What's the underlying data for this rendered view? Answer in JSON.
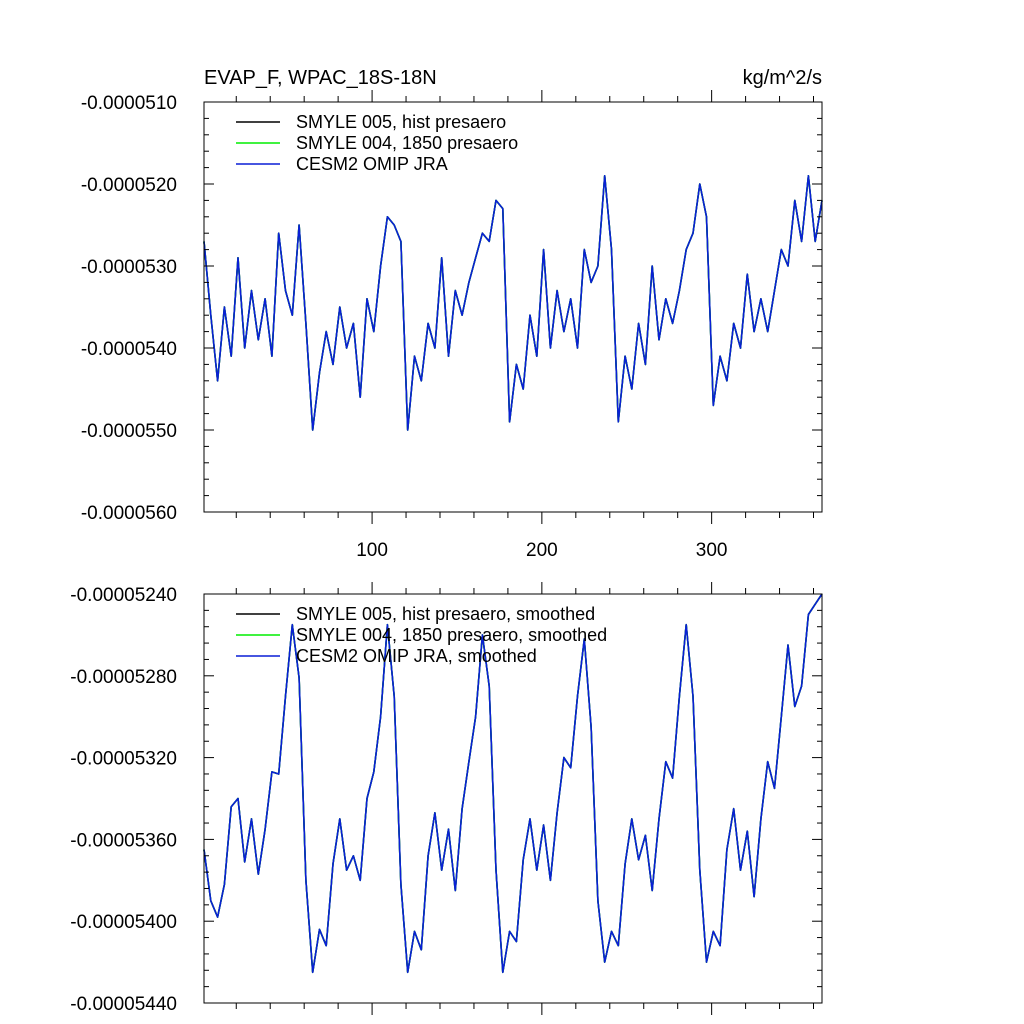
{
  "colors": {
    "black": "#000000",
    "green": "#00ee00",
    "blue": "#0a1fd6"
  },
  "chart_data": [
    {
      "type": "line",
      "title": "EVAP_F, WPAC_18S-18N",
      "units": "kg/m^2/s",
      "xlabel": "",
      "ylabel": "",
      "xlim": [
        1,
        365
      ],
      "ylim": [
        -5.6e-05,
        -5.1e-05
      ],
      "xticks": [
        100,
        200,
        300
      ],
      "xtick_labels": [
        "100",
        "200",
        "300"
      ],
      "yticks": [
        -5.1e-05,
        -5.2e-05,
        -5.3e-05,
        -5.4e-05,
        -5.5e-05,
        -5.6e-05
      ],
      "ytick_labels": [
        "-0.0000510",
        "-0.0000520",
        "-0.0000530",
        "-0.0000540",
        "-0.0000550",
        "-0.0000560"
      ],
      "legend_position": "top-left",
      "grid": false,
      "x": [
        1,
        5,
        9,
        13,
        17,
        21,
        25,
        29,
        33,
        37,
        41,
        45,
        49,
        53,
        57,
        61,
        65,
        69,
        73,
        77,
        81,
        85,
        89,
        93,
        97,
        101,
        105,
        109,
        113,
        117,
        121,
        125,
        129,
        133,
        137,
        141,
        145,
        149,
        153,
        157,
        161,
        165,
        169,
        173,
        177,
        181,
        185,
        189,
        193,
        197,
        201,
        205,
        209,
        213,
        217,
        221,
        225,
        229,
        233,
        237,
        241,
        245,
        249,
        253,
        257,
        261,
        265,
        269,
        273,
        277,
        281,
        285,
        289,
        293,
        297,
        301,
        305,
        309,
        313,
        317,
        321,
        325,
        329,
        333,
        337,
        341,
        345,
        349,
        353,
        357,
        361,
        365
      ],
      "series": [
        {
          "name": "SMYLE 005, hist presaero",
          "color": "black",
          "values": [
            -5.27e-05,
            -5.36e-05,
            -5.44e-05,
            -5.35e-05,
            -5.41e-05,
            -5.29e-05,
            -5.4e-05,
            -5.33e-05,
            -5.39e-05,
            -5.34e-05,
            -5.41e-05,
            -5.26e-05,
            -5.33e-05,
            -5.36e-05,
            -5.25e-05,
            -5.37e-05,
            -5.5e-05,
            -5.43e-05,
            -5.38e-05,
            -5.42e-05,
            -5.35e-05,
            -5.4e-05,
            -5.37e-05,
            -5.46e-05,
            -5.34e-05,
            -5.38e-05,
            -5.3e-05,
            -5.24e-05,
            -5.25e-05,
            -5.27e-05,
            -5.5e-05,
            -5.41e-05,
            -5.44e-05,
            -5.37e-05,
            -5.4e-05,
            -5.29e-05,
            -5.41e-05,
            -5.33e-05,
            -5.36e-05,
            -5.32e-05,
            -5.29e-05,
            -5.26e-05,
            -5.27e-05,
            -5.22e-05,
            -5.23e-05,
            -5.49e-05,
            -5.42e-05,
            -5.45e-05,
            -5.36e-05,
            -5.41e-05,
            -5.28e-05,
            -5.4e-05,
            -5.33e-05,
            -5.38e-05,
            -5.34e-05,
            -5.4e-05,
            -5.28e-05,
            -5.32e-05,
            -5.3e-05,
            -5.19e-05,
            -5.28e-05,
            -5.49e-05,
            -5.41e-05,
            -5.45e-05,
            -5.37e-05,
            -5.42e-05,
            -5.3e-05,
            -5.39e-05,
            -5.34e-05,
            -5.37e-05,
            -5.33e-05,
            -5.28e-05,
            -5.26e-05,
            -5.2e-05,
            -5.24e-05,
            -5.47e-05,
            -5.41e-05,
            -5.44e-05,
            -5.37e-05,
            -5.4e-05,
            -5.31e-05,
            -5.38e-05,
            -5.34e-05,
            -5.38e-05,
            -5.33e-05,
            -5.28e-05,
            -5.3e-05,
            -5.22e-05,
            -5.27e-05,
            -5.19e-05,
            -5.27e-05,
            -5.22e-05
          ]
        },
        {
          "name": "SMYLE 004, 1850 presaero",
          "color": "green",
          "values": [
            -5.27e-05,
            -5.36e-05,
            -5.44e-05,
            -5.35e-05,
            -5.41e-05,
            -5.29e-05,
            -5.4e-05,
            -5.33e-05,
            -5.39e-05,
            -5.34e-05,
            -5.41e-05,
            -5.26e-05,
            -5.33e-05,
            -5.36e-05,
            -5.25e-05,
            -5.37e-05,
            -5.5e-05,
            -5.43e-05,
            -5.38e-05,
            -5.42e-05,
            -5.35e-05,
            -5.4e-05,
            -5.37e-05,
            -5.46e-05,
            -5.34e-05,
            -5.38e-05,
            -5.3e-05,
            -5.24e-05,
            -5.25e-05,
            -5.27e-05,
            -5.5e-05,
            -5.41e-05,
            -5.44e-05,
            -5.37e-05,
            -5.4e-05,
            -5.29e-05,
            -5.41e-05,
            -5.33e-05,
            -5.36e-05,
            -5.32e-05,
            -5.29e-05,
            -5.26e-05,
            -5.27e-05,
            -5.22e-05,
            -5.23e-05,
            -5.49e-05,
            -5.42e-05,
            -5.45e-05,
            -5.36e-05,
            -5.41e-05,
            -5.28e-05,
            -5.4e-05,
            -5.33e-05,
            -5.38e-05,
            -5.34e-05,
            -5.4e-05,
            -5.28e-05,
            -5.32e-05,
            -5.3e-05,
            -5.19e-05,
            -5.28e-05,
            -5.49e-05,
            -5.41e-05,
            -5.45e-05,
            -5.37e-05,
            -5.42e-05,
            -5.3e-05,
            -5.39e-05,
            -5.34e-05,
            -5.37e-05,
            -5.33e-05,
            -5.28e-05,
            -5.26e-05,
            -5.2e-05,
            -5.24e-05,
            -5.47e-05,
            -5.41e-05,
            -5.44e-05,
            -5.37e-05,
            -5.4e-05,
            -5.31e-05,
            -5.38e-05,
            -5.34e-05,
            -5.38e-05,
            -5.33e-05,
            -5.28e-05,
            -5.3e-05,
            -5.22e-05,
            -5.27e-05,
            -5.19e-05,
            -5.27e-05,
            -5.22e-05
          ]
        },
        {
          "name": "CESM2 OMIP JRA",
          "color": "blue",
          "values": [
            -5.27e-05,
            -5.36e-05,
            -5.44e-05,
            -5.35e-05,
            -5.41e-05,
            -5.29e-05,
            -5.4e-05,
            -5.33e-05,
            -5.39e-05,
            -5.34e-05,
            -5.41e-05,
            -5.26e-05,
            -5.33e-05,
            -5.36e-05,
            -5.25e-05,
            -5.37e-05,
            -5.5e-05,
            -5.43e-05,
            -5.38e-05,
            -5.42e-05,
            -5.35e-05,
            -5.4e-05,
            -5.37e-05,
            -5.46e-05,
            -5.34e-05,
            -5.38e-05,
            -5.3e-05,
            -5.24e-05,
            -5.25e-05,
            -5.27e-05,
            -5.5e-05,
            -5.41e-05,
            -5.44e-05,
            -5.37e-05,
            -5.4e-05,
            -5.29e-05,
            -5.41e-05,
            -5.33e-05,
            -5.36e-05,
            -5.32e-05,
            -5.29e-05,
            -5.26e-05,
            -5.27e-05,
            -5.22e-05,
            -5.23e-05,
            -5.49e-05,
            -5.42e-05,
            -5.45e-05,
            -5.36e-05,
            -5.41e-05,
            -5.28e-05,
            -5.4e-05,
            -5.33e-05,
            -5.38e-05,
            -5.34e-05,
            -5.4e-05,
            -5.28e-05,
            -5.32e-05,
            -5.3e-05,
            -5.19e-05,
            -5.28e-05,
            -5.49e-05,
            -5.41e-05,
            -5.45e-05,
            -5.37e-05,
            -5.42e-05,
            -5.3e-05,
            -5.39e-05,
            -5.34e-05,
            -5.37e-05,
            -5.33e-05,
            -5.28e-05,
            -5.26e-05,
            -5.2e-05,
            -5.24e-05,
            -5.47e-05,
            -5.41e-05,
            -5.44e-05,
            -5.37e-05,
            -5.4e-05,
            -5.31e-05,
            -5.38e-05,
            -5.34e-05,
            -5.38e-05,
            -5.33e-05,
            -5.28e-05,
            -5.3e-05,
            -5.22e-05,
            -5.27e-05,
            -5.19e-05,
            -5.27e-05,
            -5.22e-05
          ]
        }
      ]
    },
    {
      "type": "line",
      "title": "",
      "xlabel": "",
      "ylabel": "",
      "xlim": [
        1,
        365
      ],
      "ylim": [
        -5.44e-05,
        -5.24e-05
      ],
      "xticks": [
        100,
        200,
        300
      ],
      "xtick_labels": [],
      "yticks": [
        -5.24e-05,
        -5.28e-05,
        -5.32e-05,
        -5.36e-05,
        -5.4e-05,
        -5.44e-05
      ],
      "ytick_labels": [
        "-0.00005240",
        "-0.00005280",
        "-0.00005320",
        "-0.00005360",
        "-0.00005400",
        "-0.00005440"
      ],
      "legend_position": "top-left",
      "grid": false,
      "x": [
        1,
        5,
        9,
        13,
        17,
        21,
        25,
        29,
        33,
        37,
        41,
        45,
        49,
        53,
        57,
        61,
        65,
        69,
        73,
        77,
        81,
        85,
        89,
        93,
        97,
        101,
        105,
        109,
        113,
        117,
        121,
        125,
        129,
        133,
        137,
        141,
        145,
        149,
        153,
        157,
        161,
        165,
        169,
        173,
        177,
        181,
        185,
        189,
        193,
        197,
        201,
        205,
        209,
        213,
        217,
        221,
        225,
        229,
        233,
        237,
        241,
        245,
        249,
        253,
        257,
        261,
        265,
        269,
        273,
        277,
        281,
        285,
        289,
        293,
        297,
        301,
        305,
        309,
        313,
        317,
        321,
        325,
        329,
        333,
        337,
        341,
        345,
        349,
        353,
        357,
        361,
        365
      ],
      "series": [
        {
          "name": "SMYLE 005, hist presaero, smoothed",
          "color": "black",
          "values": [
            -5.365e-05,
            -5.39e-05,
            -5.398e-05,
            -5.382e-05,
            -5.344e-05,
            -5.34e-05,
            -5.371e-05,
            -5.35e-05,
            -5.377e-05,
            -5.355e-05,
            -5.327e-05,
            -5.328e-05,
            -5.29e-05,
            -5.255e-05,
            -5.281e-05,
            -5.38e-05,
            -5.425e-05,
            -5.404e-05,
            -5.412e-05,
            -5.372e-05,
            -5.35e-05,
            -5.375e-05,
            -5.368e-05,
            -5.38e-05,
            -5.34e-05,
            -5.327e-05,
            -5.3e-05,
            -5.255e-05,
            -5.29e-05,
            -5.382e-05,
            -5.425e-05,
            -5.405e-05,
            -5.414e-05,
            -5.368e-05,
            -5.347e-05,
            -5.375e-05,
            -5.355e-05,
            -5.385e-05,
            -5.345e-05,
            -5.322e-05,
            -5.3e-05,
            -5.26e-05,
            -5.285e-05,
            -5.375e-05,
            -5.425e-05,
            -5.405e-05,
            -5.41e-05,
            -5.37e-05,
            -5.35e-05,
            -5.375e-05,
            -5.353e-05,
            -5.38e-05,
            -5.347e-05,
            -5.32e-05,
            -5.325e-05,
            -5.29e-05,
            -5.262e-05,
            -5.305e-05,
            -5.39e-05,
            -5.42e-05,
            -5.405e-05,
            -5.412e-05,
            -5.372e-05,
            -5.35e-05,
            -5.37e-05,
            -5.358e-05,
            -5.385e-05,
            -5.35e-05,
            -5.322e-05,
            -5.33e-05,
            -5.29e-05,
            -5.255e-05,
            -5.29e-05,
            -5.375e-05,
            -5.42e-05,
            -5.405e-05,
            -5.412e-05,
            -5.365e-05,
            -5.345e-05,
            -5.375e-05,
            -5.356e-05,
            -5.388e-05,
            -5.35e-05,
            -5.322e-05,
            -5.335e-05,
            -5.3e-05,
            -5.265e-05,
            -5.295e-05,
            -5.285e-05,
            -5.25e-05,
            -5.245e-05,
            -5.24e-05
          ]
        },
        {
          "name": "SMYLE 004, 1850 presaero, smoothed",
          "color": "green",
          "values": [
            -5.365e-05,
            -5.39e-05,
            -5.398e-05,
            -5.382e-05,
            -5.344e-05,
            -5.34e-05,
            -5.371e-05,
            -5.35e-05,
            -5.377e-05,
            -5.355e-05,
            -5.327e-05,
            -5.328e-05,
            -5.29e-05,
            -5.255e-05,
            -5.281e-05,
            -5.38e-05,
            -5.425e-05,
            -5.404e-05,
            -5.412e-05,
            -5.372e-05,
            -5.35e-05,
            -5.375e-05,
            -5.368e-05,
            -5.38e-05,
            -5.34e-05,
            -5.327e-05,
            -5.3e-05,
            -5.255e-05,
            -5.29e-05,
            -5.382e-05,
            -5.425e-05,
            -5.405e-05,
            -5.414e-05,
            -5.368e-05,
            -5.347e-05,
            -5.375e-05,
            -5.355e-05,
            -5.385e-05,
            -5.345e-05,
            -5.322e-05,
            -5.3e-05,
            -5.26e-05,
            -5.285e-05,
            -5.375e-05,
            -5.425e-05,
            -5.405e-05,
            -5.41e-05,
            -5.37e-05,
            -5.35e-05,
            -5.375e-05,
            -5.353e-05,
            -5.38e-05,
            -5.347e-05,
            -5.32e-05,
            -5.325e-05,
            -5.29e-05,
            -5.262e-05,
            -5.305e-05,
            -5.39e-05,
            -5.42e-05,
            -5.405e-05,
            -5.412e-05,
            -5.372e-05,
            -5.35e-05,
            -5.37e-05,
            -5.358e-05,
            -5.385e-05,
            -5.35e-05,
            -5.322e-05,
            -5.33e-05,
            -5.29e-05,
            -5.255e-05,
            -5.29e-05,
            -5.375e-05,
            -5.42e-05,
            -5.405e-05,
            -5.412e-05,
            -5.365e-05,
            -5.345e-05,
            -5.375e-05,
            -5.356e-05,
            -5.388e-05,
            -5.35e-05,
            -5.322e-05,
            -5.335e-05,
            -5.3e-05,
            -5.265e-05,
            -5.295e-05,
            -5.285e-05,
            -5.25e-05,
            -5.245e-05,
            -5.24e-05
          ]
        },
        {
          "name": "CESM2 OMIP JRA, smoothed",
          "color": "blue",
          "values": [
            -5.365e-05,
            -5.39e-05,
            -5.398e-05,
            -5.382e-05,
            -5.344e-05,
            -5.34e-05,
            -5.371e-05,
            -5.35e-05,
            -5.377e-05,
            -5.355e-05,
            -5.327e-05,
            -5.328e-05,
            -5.29e-05,
            -5.255e-05,
            -5.281e-05,
            -5.38e-05,
            -5.425e-05,
            -5.404e-05,
            -5.412e-05,
            -5.372e-05,
            -5.35e-05,
            -5.375e-05,
            -5.368e-05,
            -5.38e-05,
            -5.34e-05,
            -5.327e-05,
            -5.3e-05,
            -5.255e-05,
            -5.29e-05,
            -5.382e-05,
            -5.425e-05,
            -5.405e-05,
            -5.414e-05,
            -5.368e-05,
            -5.347e-05,
            -5.375e-05,
            -5.355e-05,
            -5.385e-05,
            -5.345e-05,
            -5.322e-05,
            -5.3e-05,
            -5.26e-05,
            -5.285e-05,
            -5.375e-05,
            -5.425e-05,
            -5.405e-05,
            -5.41e-05,
            -5.37e-05,
            -5.35e-05,
            -5.375e-05,
            -5.353e-05,
            -5.38e-05,
            -5.347e-05,
            -5.32e-05,
            -5.325e-05,
            -5.29e-05,
            -5.262e-05,
            -5.305e-05,
            -5.39e-05,
            -5.42e-05,
            -5.405e-05,
            -5.412e-05,
            -5.372e-05,
            -5.35e-05,
            -5.37e-05,
            -5.358e-05,
            -5.385e-05,
            -5.35e-05,
            -5.322e-05,
            -5.33e-05,
            -5.29e-05,
            -5.255e-05,
            -5.29e-05,
            -5.375e-05,
            -5.42e-05,
            -5.405e-05,
            -5.412e-05,
            -5.365e-05,
            -5.345e-05,
            -5.375e-05,
            -5.356e-05,
            -5.388e-05,
            -5.35e-05,
            -5.322e-05,
            -5.335e-05,
            -5.3e-05,
            -5.265e-05,
            -5.295e-05,
            -5.285e-05,
            -5.25e-05,
            -5.245e-05,
            -5.24e-05
          ]
        }
      ]
    }
  ]
}
